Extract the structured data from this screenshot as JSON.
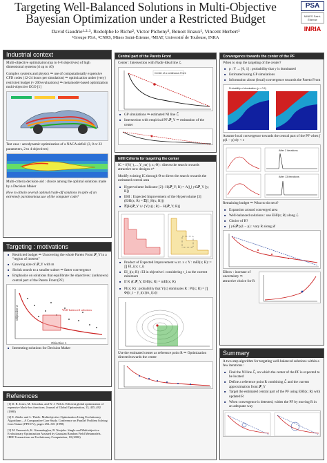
{
  "header": {
    "title_line1": "Targeting Well-Balanced Solutions in Multi-Objective",
    "title_line2": "Bayesian Optimization under a Restricted Budget",
    "authors": "David Gaudrie¹·²·³, Rodolphe le Riche², Victor Picheny³, Benoit Enaux¹, Vincent Herbert¹",
    "affiliations": "¹Groupe PSA, ²CNRS, Mines Saint-Étienne, ³MIAT, Université de Toulouse, INRA",
    "logos": [
      "PSA",
      "MINES Saint-Étienne",
      "INRIA"
    ]
  },
  "industrial": {
    "title": "Industrial context",
    "p1": "Multi-objective optimization (up to 6-8 objectives) of high dimensional systems (d up to 40)",
    "p2": "Complex systems and physics ⇒ use of computationally expensive CFD codes (12-24 hours per simulation) ⇒ optimization under (very) restricted budget (≈ 200 evaluations) ⇒ metamodel-based optimization multi-objective EGO [1]",
    "p3": "Test case : aerodynamic optimization of a NACA airfoil (3, 8 or 22 parameters, 2 to 4 objectives)",
    "p4": "Multi-criteria decision-aid : choice among the optimal solutions made by a Decision Maker",
    "p5": "How to obtain several optimal trade-off solutions in spite of an extremely parsimonious use of the computer code?"
  },
  "motivations": {
    "title": "Targeting : motivations",
    "items": [
      "Restricted budget ⇒ Uncovering the whole Pareto Front 𝒫_Y in a \"region of interest\"",
      "Growing size of 𝒫_Y with m",
      "Shrink search to a smaller subset ⇒ faster convergence",
      "Emphasize on solutions that equilibrate the objectives : (unknown) central part of the Pareto Front (PF)"
    ],
    "fig_label_box": "Well-balanced solutions",
    "fig_xlabel": "Objective 1",
    "fig_ylabel": "Objective 2",
    "last_item": "Interesting solutions for Decision Maker"
  },
  "references": {
    "title": "References",
    "items": [
      "[1] D. R. Jones, M. Schonlau, and W. J. Welch. Efficient global optimization of expensive black-box functions. Journal of Global Optimization, 13, 455–492 (1998)",
      "[2] E. Zitzler and L. Thiele. Multiobjective Optimization Using Evolutionary Algorithms – A Comparative Case Study. Conference on Parallel Problem Solving from Nature (PPSN V), pages 292–301 (1998)",
      "[3] M. Emmerich, K. Giannakoglou, B. Naujoks. Single and Multiobjective Evolutionary Optimization Assisted by Gaussian Random Field Metamodels. IEEE Transactions on Evolutionary Computation, 10 (2006)"
    ]
  },
  "central": {
    "title": "Central part of the Pareto Front",
    "center_def": "Center : Intersection with Nadir-Ideal line ℒ",
    "fig_legend": "Center of a continuous Front",
    "items": [
      "GP simulations ⇒ estimated NI line ℒ̃",
      "Intersection with empirical PF 𝒫̃_Y ⇒ estimation of the center"
    ]
  },
  "infill": {
    "title": "Infill Criteria for targeting the center",
    "p1": "IC = f(Y(·),…,Y_m(·); x; Θ) : directs the search towards attractive new designs x*",
    "p2": "Modify existing IC through Θ to direct the search towards the estimated central area",
    "items": [
      "Hypervolume Indicator [2] : H(𝒫̃_Y; R) = Λ(⋃ y∈𝒫̃_Y [y; R])",
      "EHI : Expected Improvement of the Hypervolume [3] (EHI(x; R) = 𝔼[I_H(x; R)])",
      "𝔼[H(𝒫̃_Y ∪ {Y(x)}; R) − H(𝒫̃_Y; R)]"
    ],
    "items2": [
      "Product of Expected Improvement w.r.t. x ≤ Y : mEI(x; R) := ∏ EI_i(x; r_i)",
      "EI_i(x; R) : EI in objective i considering r_i as the current minimum",
      "If R ⪯̸ 𝒫̃_Y, EHI(x; R) = mEI(x; R)"
    ],
    "items3": [
      "PI(x; R) : probability that Y(x) dominates R : PI(x; R) = ∏ Φ((r_i − ŷ_i(x))/s_i(x))"
    ],
    "p3": "Use the estimated center as reference point R ⇒ Optimization directed towards the center"
  },
  "convergence": {
    "title": "Convergence towards the center of the PF",
    "question": "When to stop the targeting of the center?",
    "items": [
      "p : Y → [0, 1] : probability that y is dominated",
      "Estimated using GP simulations",
      "Information about (local) convergence towards the Pareto Front"
    ],
    "fig1_caption": "Probability of domination (p ≈ 0.5)",
    "assume": "Assume local convergence towards the central part of the PF when ∫ p(1 − p) dy < ε",
    "fig2_label_a": "After 2 iterations",
    "fig2_label_b": "After 13 iterations",
    "remaining": "Remaining budget ⇒ What to do next?",
    "items2": [
      "Expansion around converged area",
      "Well-balanced solutions : use EHI(x; R) along ℒ",
      "Choice of R?",
      "∫ y∈𝒫̃ p(1 − p) : vary R along ℒ"
    ],
    "elbow": "Elbow : increase of uncertainty ⇒ attractive choice for R"
  },
  "summary": {
    "title": "Summary",
    "intro": "A two-step algorithm for targeting well-balanced solutions within a few iterations :",
    "items": [
      "Find the NI line ℒ̃, on which the center of the PF is expected to be located",
      "Define a reference point R combining ℒ̃ and the current approximation front 𝒫̃_Y",
      "Target the estimated central part of the PF using EHI(x; R) with updated R",
      "When convergence is detected, widen the PF by moving R in an adequate way"
    ]
  }
}
